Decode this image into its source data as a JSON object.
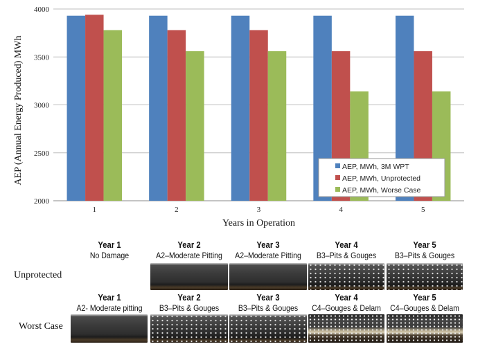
{
  "chart_data": {
    "type": "bar",
    "title": "",
    "xlabel": "Years in Operation",
    "ylabel": "AEP (Annual Energy Produced) MWh",
    "categories": [
      "1",
      "2",
      "3",
      "4",
      "5"
    ],
    "ylim": [
      2000,
      4000
    ],
    "yticks": [
      "2000",
      "2500",
      "3000",
      "3500",
      "4000"
    ],
    "grid": true,
    "legend_position": "bottom-right",
    "series": [
      {
        "name": "AEP, MWh, 3M WPT",
        "color": "#4f81bd",
        "values": [
          3930,
          3930,
          3930,
          3930,
          3930
        ]
      },
      {
        "name": "AEP, MWh, Unprotected",
        "color": "#c0504d",
        "values": [
          3940,
          3780,
          3780,
          3560,
          3560
        ]
      },
      {
        "name": "AEP, MWh, Worse Case",
        "color": "#9bbb59",
        "values": [
          3780,
          3560,
          3560,
          3140,
          3140
        ]
      }
    ]
  },
  "damage_panel": {
    "rows": [
      {
        "label": "Unprotected",
        "items": [
          {
            "year": "Year 1",
            "condition": "No Damage",
            "photo": false
          },
          {
            "year": "Year 2",
            "condition": "A2–Moderate Pitting",
            "photo": true
          },
          {
            "year": "Year 3",
            "condition": "A2–Moderate Pitting",
            "photo": true
          },
          {
            "year": "Year 4",
            "condition": "B3–Pits & Gouges",
            "photo": true
          },
          {
            "year": "Year 5",
            "condition": "B3–Pits & Gouges",
            "photo": true
          }
        ]
      },
      {
        "label": "Worst Case",
        "items": [
          {
            "year": "Year 1",
            "condition": "A2- Moderate pitting",
            "photo": true
          },
          {
            "year": "Year 2",
            "condition": "B3–Pits & Gouges",
            "photo": true
          },
          {
            "year": "Year 3",
            "condition": "B3–Pits & Gouges",
            "photo": true
          },
          {
            "year": "Year 4",
            "condition": "C4–Gouges & Delam",
            "photo": true
          },
          {
            "year": "Year 5",
            "condition": "C4–Gouges & Delam",
            "photo": true
          }
        ]
      }
    ]
  }
}
